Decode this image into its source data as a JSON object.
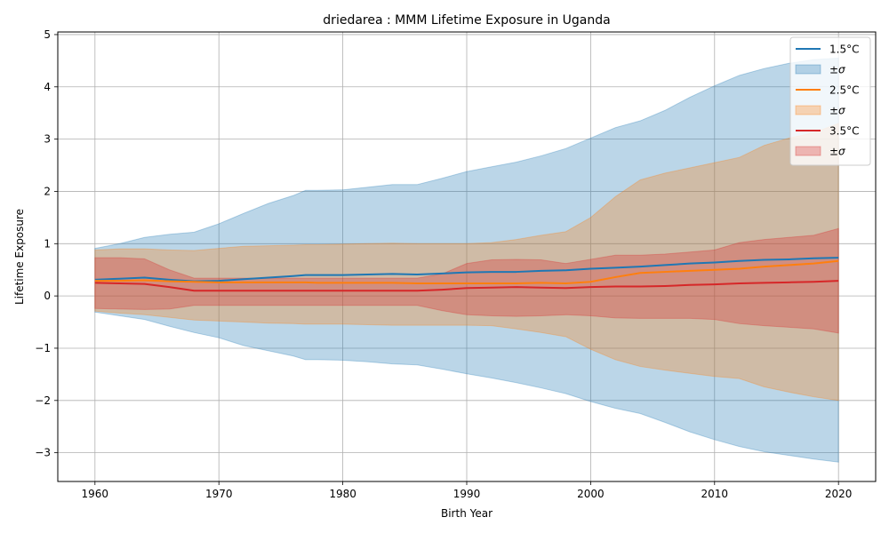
{
  "chart_data": {
    "type": "area",
    "title": "driedarea : MMM Lifetime Exposure in Uganda",
    "xlabel": "Birth Year",
    "ylabel": "Lifetime Exposure",
    "xlim": [
      1957,
      2023
    ],
    "ylim": [
      -3.55,
      5.05
    ],
    "x_ticks": [
      1960,
      1970,
      1980,
      1990,
      2000,
      2010,
      2020
    ],
    "y_ticks": [
      -3,
      -2,
      -1,
      0,
      1,
      2,
      3,
      4,
      5
    ],
    "y_tick_labels": [
      "−3",
      "−2",
      "−1",
      "0",
      "1",
      "2",
      "3",
      "4",
      "5"
    ],
    "grid": true,
    "legend_position": "top-right",
    "x": [
      1960,
      1962,
      1964,
      1966,
      1968,
      1970,
      1972,
      1974,
      1976,
      1977,
      1978,
      1980,
      1982,
      1984,
      1986,
      1988,
      1990,
      1992,
      1994,
      1996,
      1998,
      2000,
      2002,
      2004,
      2006,
      2008,
      2010,
      2012,
      2014,
      2016,
      2018,
      2020
    ],
    "series": [
      {
        "name": "1.5°C",
        "band_label": "±σ",
        "color": "#1f77b4",
        "band_color": "#1f77b4",
        "mean": [
          0.31,
          0.33,
          0.35,
          0.31,
          0.28,
          0.29,
          0.32,
          0.35,
          0.38,
          0.4,
          0.4,
          0.4,
          0.41,
          0.42,
          0.41,
          0.43,
          0.45,
          0.46,
          0.46,
          0.48,
          0.49,
          0.52,
          0.54,
          0.56,
          0.59,
          0.62,
          0.64,
          0.67,
          0.69,
          0.7,
          0.72,
          0.73
        ],
        "upper": [
          0.91,
          1.0,
          1.12,
          1.18,
          1.22,
          1.38,
          1.58,
          1.77,
          1.92,
          2.02,
          2.02,
          2.03,
          2.08,
          2.13,
          2.13,
          2.25,
          2.38,
          2.47,
          2.56,
          2.68,
          2.82,
          3.02,
          3.22,
          3.35,
          3.55,
          3.8,
          4.02,
          4.22,
          4.35,
          4.45,
          4.52,
          4.55
        ],
        "lower": [
          -0.31,
          -0.38,
          -0.45,
          -0.58,
          -0.7,
          -0.8,
          -0.95,
          -1.05,
          -1.15,
          -1.22,
          -1.22,
          -1.23,
          -1.26,
          -1.3,
          -1.32,
          -1.4,
          -1.49,
          -1.57,
          -1.66,
          -1.76,
          -1.87,
          -2.02,
          -2.15,
          -2.25,
          -2.42,
          -2.6,
          -2.75,
          -2.88,
          -2.98,
          -3.05,
          -3.12,
          -3.18
        ]
      },
      {
        "name": "2.5°C",
        "band_label": "±σ",
        "color": "#ff7f0e",
        "band_color": "#ff7f0e",
        "mean": [
          0.29,
          0.29,
          0.3,
          0.28,
          0.27,
          0.26,
          0.26,
          0.26,
          0.26,
          0.26,
          0.25,
          0.25,
          0.25,
          0.25,
          0.24,
          0.24,
          0.24,
          0.24,
          0.24,
          0.25,
          0.24,
          0.27,
          0.36,
          0.44,
          0.46,
          0.48,
          0.5,
          0.52,
          0.56,
          0.59,
          0.62,
          0.67
        ],
        "upper": [
          0.88,
          0.9,
          0.9,
          0.88,
          0.87,
          0.91,
          0.95,
          0.96,
          0.97,
          0.98,
          0.98,
          0.99,
          1.0,
          1.01,
          1.0,
          1.0,
          1.0,
          1.02,
          1.08,
          1.16,
          1.23,
          1.5,
          1.9,
          2.22,
          2.35,
          2.45,
          2.55,
          2.65,
          2.88,
          3.02,
          3.12,
          3.3
        ],
        "lower": [
          -0.29,
          -0.33,
          -0.36,
          -0.41,
          -0.46,
          -0.48,
          -0.5,
          -0.52,
          -0.53,
          -0.54,
          -0.54,
          -0.54,
          -0.55,
          -0.56,
          -0.56,
          -0.56,
          -0.56,
          -0.57,
          -0.63,
          -0.7,
          -0.78,
          -1.02,
          -1.22,
          -1.35,
          -1.42,
          -1.48,
          -1.54,
          -1.58,
          -1.74,
          -1.84,
          -1.93,
          -2.0
        ]
      },
      {
        "name": "3.5°C",
        "band_label": "±σ",
        "color": "#d62728",
        "band_color": "#d62728",
        "mean": [
          0.25,
          0.24,
          0.23,
          0.17,
          0.1,
          0.1,
          0.1,
          0.1,
          0.1,
          0.1,
          0.1,
          0.1,
          0.1,
          0.1,
          0.1,
          0.12,
          0.15,
          0.16,
          0.17,
          0.16,
          0.15,
          0.17,
          0.18,
          0.18,
          0.19,
          0.21,
          0.22,
          0.24,
          0.25,
          0.26,
          0.27,
          0.29
        ],
        "upper": [
          0.73,
          0.73,
          0.71,
          0.5,
          0.34,
          0.34,
          0.34,
          0.34,
          0.34,
          0.34,
          0.34,
          0.34,
          0.34,
          0.34,
          0.34,
          0.42,
          0.62,
          0.69,
          0.7,
          0.69,
          0.62,
          0.7,
          0.78,
          0.78,
          0.8,
          0.84,
          0.88,
          1.02,
          1.08,
          1.12,
          1.16,
          1.29
        ],
        "lower": [
          -0.24,
          -0.25,
          -0.26,
          -0.25,
          -0.18,
          -0.18,
          -0.18,
          -0.18,
          -0.18,
          -0.18,
          -0.18,
          -0.18,
          -0.18,
          -0.18,
          -0.18,
          -0.28,
          -0.36,
          -0.38,
          -0.39,
          -0.38,
          -0.36,
          -0.38,
          -0.42,
          -0.43,
          -0.43,
          -0.43,
          -0.45,
          -0.53,
          -0.57,
          -0.6,
          -0.63,
          -0.71
        ]
      }
    ]
  }
}
